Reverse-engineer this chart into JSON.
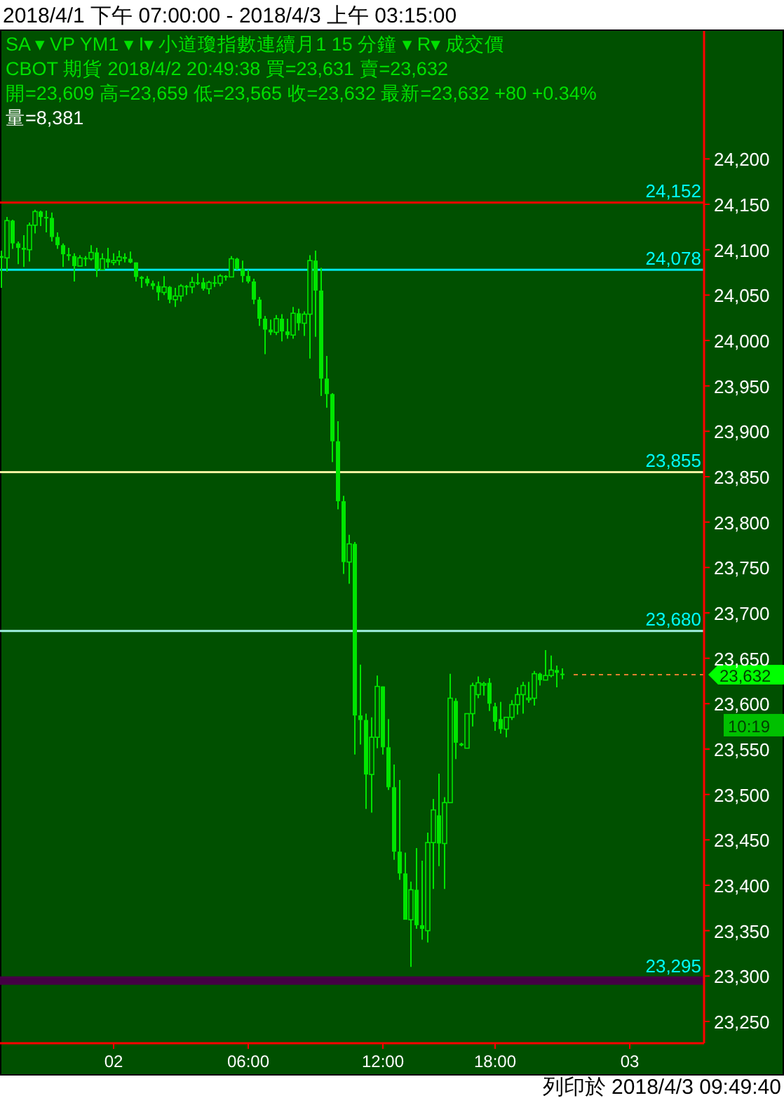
{
  "chart_data": {
    "type": "candlestick",
    "title": "2018/4/1 下午 07:00:00 - 2018/4/3 上午 03:15:00",
    "annotations": [
      "SA ▾  VP  YM1  ▾  I▾  小道瓊指數連續月1  15 分鐘  ▾  R▾  成交價",
      "CBOT  期貨  2018/4/2  20:49:38  買=23,631  賣=23,632",
      "開=23,609  高=23,659  低=23,565  收=23,632  最新=23,632  +80  +0.34%",
      "量=8,381",
      "10:19",
      "列印於 2018/4/3 09:49:40"
    ],
    "categories": [
      null,
      null,
      null,
      null,
      null,
      null,
      null,
      null,
      null,
      null,
      null,
      null,
      null,
      null,
      null,
      null,
      null,
      null,
      null,
      null,
      "02",
      null,
      null,
      null,
      null,
      null,
      null,
      null,
      null,
      null,
      null,
      null,
      null,
      null,
      null,
      null,
      null,
      null,
      null,
      null,
      null,
      null,
      null,
      null,
      "06:00",
      null,
      null,
      null,
      null,
      null,
      null,
      null,
      null,
      null,
      null,
      null,
      null,
      null,
      null,
      null,
      null,
      null,
      null,
      null,
      null,
      null,
      null,
      null,
      "12:00",
      null,
      null,
      null,
      null,
      null,
      null,
      null,
      null,
      null,
      null,
      null,
      null,
      null,
      null,
      null,
      null,
      null,
      null,
      null,
      "18:00",
      null,
      null,
      null,
      null,
      null,
      null,
      null,
      null,
      null,
      null,
      null,
      null,
      null,
      null,
      null,
      null,
      null,
      null,
      null,
      null,
      null,
      null,
      null,
      "03",
      null,
      null,
      null,
      null,
      null,
      null,
      null,
      null,
      null,
      null,
      null,
      null,
      null
    ],
    "color": "#00e600",
    "ohlc": [
      [
        24093,
        24099,
        24058,
        24091
      ],
      [
        24091,
        24136,
        24076,
        24132
      ],
      [
        24132,
        24133,
        24101,
        24107
      ],
      [
        24107,
        24109,
        24084,
        24102
      ],
      [
        24102,
        24116,
        24081,
        24100
      ],
      [
        24100,
        24130,
        24087,
        24127
      ],
      [
        24127,
        24144,
        24118,
        24142
      ],
      [
        24142,
        24143,
        24126,
        24136
      ],
      [
        24136,
        24143,
        24119,
        24135
      ],
      [
        24135,
        24141,
        24109,
        24114
      ],
      [
        24114,
        24119,
        24101,
        24105
      ],
      [
        24105,
        24107,
        24081,
        24095
      ],
      [
        24095,
        24102,
        24088,
        24093
      ],
      [
        24093,
        24096,
        24065,
        24082
      ],
      [
        24082,
        24094,
        24082,
        24091
      ],
      [
        24091,
        24093,
        24082,
        24090
      ],
      [
        24090,
        24105,
        24088,
        24097
      ],
      [
        24097,
        24102,
        24070,
        24078
      ],
      [
        24078,
        24096,
        24078,
        24090
      ],
      [
        24090,
        24102,
        24080,
        24086
      ],
      [
        24086,
        24096,
        24083,
        24088
      ],
      [
        24088,
        24099,
        24083,
        24092
      ],
      [
        24092,
        24096,
        24086,
        24090
      ],
      [
        24090,
        24098,
        24085,
        24086
      ],
      [
        24086,
        24086,
        24065,
        24070
      ],
      [
        24070,
        24071,
        24058,
        24068
      ],
      [
        24068,
        24071,
        24060,
        24063
      ],
      [
        24063,
        24066,
        24056,
        24060
      ],
      [
        24060,
        24065,
        24044,
        24053
      ],
      [
        24053,
        24071,
        24050,
        24059
      ],
      [
        24059,
        24060,
        24041,
        24045
      ],
      [
        24045,
        24058,
        24037,
        24049
      ],
      [
        24049,
        24062,
        24043,
        24060
      ],
      [
        24060,
        24061,
        24050,
        24059
      ],
      [
        24059,
        24070,
        24052,
        24064
      ],
      [
        24064,
        24074,
        24061,
        24064
      ],
      [
        24064,
        24069,
        24055,
        24057
      ],
      [
        24057,
        24066,
        24051,
        24064
      ],
      [
        24064,
        24071,
        24059,
        24063
      ],
      [
        24063,
        24073,
        24060,
        24071
      ],
      [
        24071,
        24072,
        24066,
        24070
      ],
      [
        24070,
        24093,
        24070,
        24090
      ],
      [
        24090,
        24091,
        24078,
        24079
      ],
      [
        24079,
        24088,
        24064,
        24071
      ],
      [
        24071,
        24078,
        24063,
        24065
      ],
      [
        24065,
        24068,
        24040,
        24045
      ],
      [
        24045,
        24048,
        24016,
        24024
      ],
      [
        24024,
        24027,
        23985,
        24012
      ],
      [
        24012,
        24023,
        24006,
        24009
      ],
      [
        24009,
        24028,
        24006,
        24024
      ],
      [
        24024,
        24029,
        23999,
        24010
      ],
      [
        24010,
        24024,
        24002,
        24006
      ],
      [
        24006,
        24037,
        24002,
        24030
      ],
      [
        24030,
        24035,
        24011,
        24019
      ],
      [
        24019,
        24032,
        24005,
        24029
      ],
      [
        24029,
        24094,
        23980,
        24088
      ],
      [
        24088,
        24099,
        24004,
        24055
      ],
      [
        24055,
        24080,
        23939,
        23958
      ],
      [
        23958,
        23983,
        23926,
        23941
      ],
      [
        23941,
        23942,
        23866,
        23889
      ],
      [
        23889,
        23911,
        23814,
        23823
      ],
      [
        23823,
        23829,
        23743,
        23756
      ],
      [
        23756,
        23786,
        23732,
        23776
      ],
      [
        23776,
        23778,
        23544,
        23587
      ],
      [
        23587,
        23643,
        23555,
        23582
      ],
      [
        23582,
        23589,
        23484,
        23522
      ],
      [
        23522,
        23585,
        23480,
        23563
      ],
      [
        23563,
        23631,
        23551,
        23619
      ],
      [
        23619,
        23619,
        23544,
        23552
      ],
      [
        23552,
        23583,
        23505,
        23508
      ],
      [
        23508,
        23533,
        23428,
        23437
      ],
      [
        23437,
        23516,
        23406,
        23413
      ],
      [
        23413,
        23436,
        23362,
        23362
      ],
      [
        23362,
        23404,
        23310,
        23395
      ],
      [
        23395,
        23441,
        23352,
        23356
      ],
      [
        23356,
        23427,
        23340,
        23352
      ],
      [
        23350,
        23458,
        23337,
        23447
      ],
      [
        23447,
        23495,
        23396,
        23483
      ],
      [
        23477,
        23523,
        23421,
        23446
      ],
      [
        23446,
        23497,
        23396,
        23491
      ],
      [
        23491,
        23633,
        23491,
        23606
      ],
      [
        23603,
        23606,
        23539,
        23557
      ],
      [
        23556,
        23557,
        23553,
        23554
      ],
      [
        23551,
        23589,
        23551,
        23589
      ],
      [
        23589,
        23623,
        23575,
        23620
      ],
      [
        23610,
        23630,
        23606,
        23623
      ],
      [
        23621,
        23624,
        23609,
        23622
      ],
      [
        23623,
        23628,
        23592,
        23600
      ],
      [
        23597,
        23601,
        23570,
        23580
      ],
      [
        23583,
        23602,
        23567,
        23572
      ],
      [
        23572,
        23585,
        23563,
        23585
      ],
      [
        23585,
        23604,
        23582,
        23599
      ],
      [
        23599,
        23618,
        23588,
        23610
      ],
      [
        23610,
        23624,
        23589,
        23620
      ],
      [
        23605,
        23624,
        23601,
        23606
      ],
      [
        23606,
        23636,
        23598,
        23633
      ],
      [
        23633,
        23634,
        23620,
        23626
      ],
      [
        23626,
        23659,
        23626,
        23631
      ],
      [
        23631,
        23653,
        23629,
        23637
      ],
      [
        23637,
        23642,
        23618,
        23634
      ],
      [
        23633,
        23639,
        23627,
        23632
      ],
      null,
      null,
      null,
      null,
      null,
      null,
      null,
      null,
      null,
      null,
      null,
      null,
      null,
      null,
      null,
      null,
      null,
      null,
      null,
      null,
      null,
      null,
      null,
      null,
      null
    ],
    "ylim": [
      23226,
      24341
    ],
    "yticks": [
      {
        "value": 23250,
        "label": "23,250"
      },
      {
        "value": 23300,
        "label": "23,300"
      },
      {
        "value": 23350,
        "label": "23,350"
      },
      {
        "value": 23400,
        "label": "23,400"
      },
      {
        "value": 23450,
        "label": "23,450"
      },
      {
        "value": 23500,
        "label": "23,500"
      },
      {
        "value": 23550,
        "label": "23,550"
      },
      {
        "value": 23600,
        "label": "23,600"
      },
      {
        "value": 23650,
        "label": "23,650"
      },
      {
        "value": 23700,
        "label": "23,700"
      },
      {
        "value": 23750,
        "label": "23,750"
      },
      {
        "value": 23800,
        "label": "23,800"
      },
      {
        "value": 23850,
        "label": "23,850"
      },
      {
        "value": 23900,
        "label": "23,900"
      },
      {
        "value": 23950,
        "label": "23,950"
      },
      {
        "value": 24000,
        "label": "24,000"
      },
      {
        "value": 24050,
        "label": "24,050"
      },
      {
        "value": 24100,
        "label": "24,100"
      },
      {
        "value": 24150,
        "label": "24,150"
      },
      {
        "value": 24200,
        "label": "24,200"
      }
    ],
    "ref_lines": [
      {
        "axis": "y",
        "value": 24152,
        "label": "24,152",
        "color": "#ff0000"
      },
      {
        "axis": "y",
        "value": 24078,
        "label": "24,078",
        "color": "#00e8e8"
      },
      {
        "axis": "y",
        "value": 23855,
        "label": "23,855",
        "color": "#f0f0a0"
      },
      {
        "axis": "y",
        "value": 23680,
        "label": "23,680",
        "color": "#a0f0e0"
      },
      {
        "axis": "y",
        "value": 23295,
        "label": "23,295",
        "color": "#440044"
      },
      {
        "axis": "y",
        "value": 23632,
        "label": "23,632",
        "color": "#e08030",
        "line_style": "dashed"
      }
    ],
    "grid": false
  }
}
